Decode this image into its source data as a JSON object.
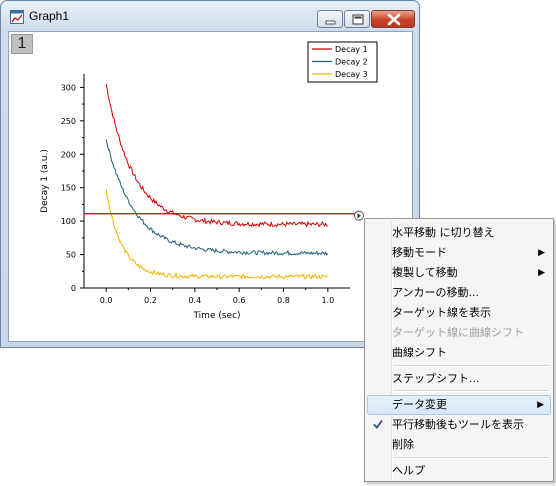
{
  "window": {
    "title": "Graph1",
    "layer_label": "1"
  },
  "chart_data": {
    "type": "line",
    "xlabel": "Time (sec)",
    "ylabel": "Decay 1 (a.u.)",
    "xlim": [
      -0.1,
      1.1
    ],
    "ylim": [
      0,
      320
    ],
    "xticks": [
      "0.0",
      "0.2",
      "0.4",
      "0.6",
      "0.8",
      "1.0"
    ],
    "yticks": [
      "0",
      "50",
      "100",
      "150",
      "200",
      "250",
      "300"
    ],
    "legend_position": "top-right",
    "series": [
      {
        "name": "Decay 1",
        "color": "#d40000",
        "amplitude": 210,
        "tau": 0.12,
        "baseline": 95,
        "noise": 3.5
      },
      {
        "name": "Decay 2",
        "color": "#1f5f7a",
        "amplitude": 170,
        "tau": 0.13,
        "baseline": 52,
        "noise": 3.0
      },
      {
        "name": "Decay 3",
        "color": "#f0b400",
        "amplitude": 130,
        "tau": 0.07,
        "baseline": 17,
        "noise": 3.0
      }
    ],
    "horizontal_line": {
      "y": 111,
      "color": "#d40000"
    }
  },
  "context_menu": {
    "items": [
      {
        "label": "水平移動 に切り替え"
      },
      {
        "label": "移動モード",
        "submenu": true
      },
      {
        "label": "複製して移動",
        "submenu": true
      },
      {
        "label": "アンカーの移動..."
      },
      {
        "label": "ターゲット線を表示"
      },
      {
        "label": "ターゲット線に曲線シフト",
        "disabled": true
      },
      {
        "label": "曲線シフト"
      },
      {
        "label": "ステップシフト..."
      },
      {
        "label": "データ変更",
        "submenu": true,
        "highlighted": true
      },
      {
        "label": "平行移動後もツールを表示",
        "checked": true
      },
      {
        "label": "削除"
      },
      {
        "label": "ヘルプ"
      }
    ]
  }
}
